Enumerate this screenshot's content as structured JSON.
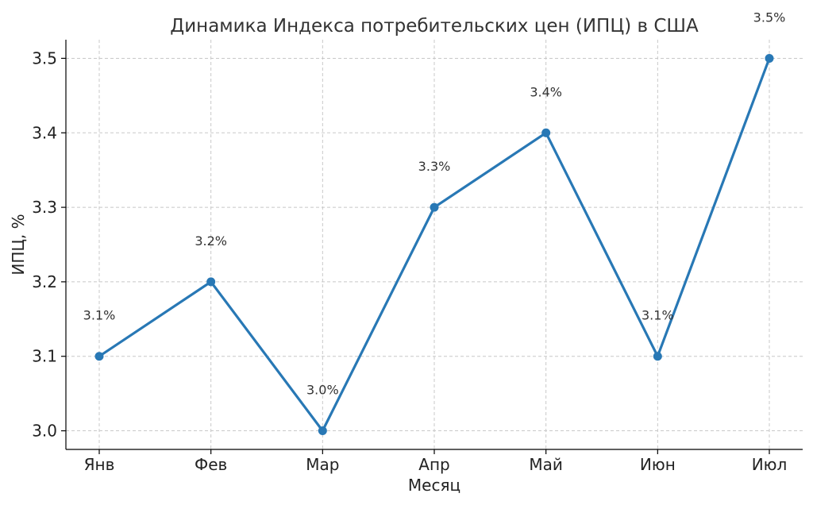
{
  "chart_data": {
    "type": "line",
    "title": "Динамика Индекса потребительских цен (ИПЦ) в США",
    "xlabel": "Месяц",
    "ylabel": "ИПЦ, %",
    "categories": [
      "Янв",
      "Фев",
      "Мар",
      "Апр",
      "Май",
      "Июн",
      "Июл"
    ],
    "series": [
      {
        "values": [
          3.1,
          3.2,
          3.0,
          3.3,
          3.4,
          3.1,
          3.5
        ],
        "color": "#2878b5"
      }
    ],
    "data_labels": [
      "3.1%",
      "3.2%",
      "3.0%",
      "3.3%",
      "3.4%",
      "3.1%",
      "3.5%"
    ],
    "yticks": [
      "3.0",
      "3.1",
      "3.2",
      "3.3",
      "3.4",
      "3.5"
    ],
    "ylim": [
      2.975,
      3.525
    ],
    "grid": true,
    "legend": "none"
  }
}
